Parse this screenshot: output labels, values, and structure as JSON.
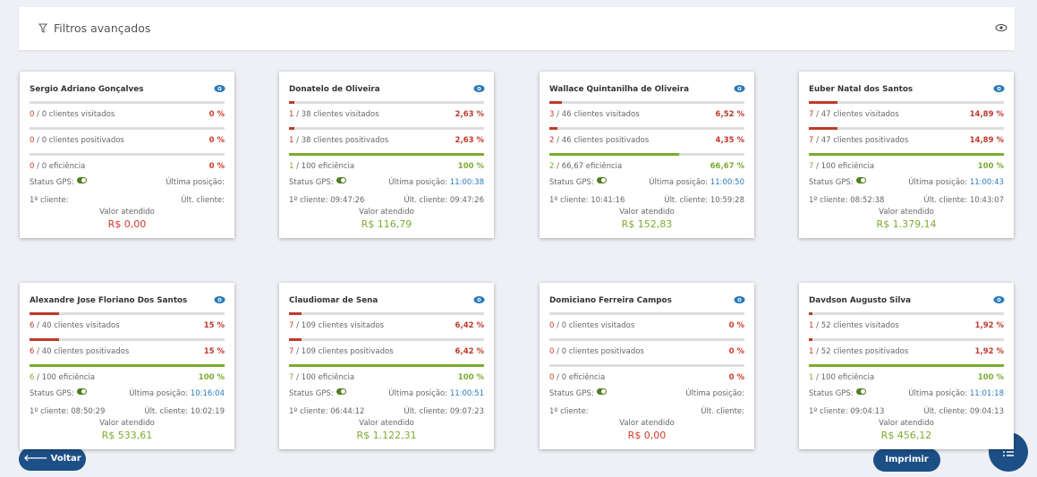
{
  "header": {
    "title": "Filtros avançados"
  },
  "labels": {
    "gps": "Status GPS:",
    "last_position": "Última posição:",
    "first_client": "1º cliente:",
    "last_client": "Últ. cliente:",
    "value": "Valor atendido"
  },
  "cards": [
    {
      "name": "Sergio Adriano Gonçalves",
      "metrics": [
        {
          "count": "0",
          "label": "/ 0 clientes visitados",
          "percent": "0 %",
          "color": "#d23a2a"
        },
        {
          "count": "0",
          "label": "/ 0 clientes positivados",
          "percent": "0 %",
          "color": "#d23a2a"
        },
        {
          "count": "0",
          "label": "/ 0 eficiência",
          "percent": "0 %",
          "color": "#d23a2a"
        }
      ],
      "value": "R$ 0,00",
      "value_color": "#d23a2a"
    },
    {
      "name": "Donatelo de Oliveira",
      "metrics": [
        {
          "count": "1",
          "label": "/ 38 clientes visitados",
          "percent": "2,63 %",
          "color": "#c0392b"
        },
        {
          "count": "1",
          "label": "/ 38 clientes positivados",
          "percent": "2,63 %",
          "color": "#c0392b"
        },
        {
          "count": "1",
          "label": "/ 100 eficiência",
          "percent": "100 %",
          "color": "#7cab2f"
        }
      ],
      "last_position": "11:00:38",
      "first_client": "09:47:26",
      "last_client": "09:47:26",
      "value": "R$ 116,79",
      "value_color": "#7cab2f"
    },
    {
      "name": "Wallace Quintanilha de Oliveira",
      "metrics": [
        {
          "count": "3",
          "label": "/ 46 clientes visitados",
          "percent": "6,52 %",
          "color": "#c0392b"
        },
        {
          "count": "2",
          "label": "/ 46 clientes positivados",
          "percent": "4,35 %",
          "color": "#c0392b"
        },
        {
          "count": "2",
          "label": "/ 66,67 eficiência",
          "percent": "66,67 %",
          "color": "#7cab2f"
        }
      ],
      "last_position": "11:00:50",
      "first_client": "10:41:16",
      "last_client": "10:59:28",
      "value": "R$ 152,83",
      "value_color": "#7cab2f"
    },
    {
      "name": "Euber Natal dos Santos",
      "metrics": [
        {
          "count": "7",
          "label": "/ 47 clientes visitados",
          "percent": "14,89 %",
          "color": "#c0392b"
        },
        {
          "count": "7",
          "label": "/ 47 clientes positivados",
          "percent": "14,89 %",
          "color": "#c0392b"
        },
        {
          "count": "7",
          "label": "/ 100 eficiência",
          "percent": "100 %",
          "color": "#7cab2f"
        }
      ],
      "last_position": "11:00:43",
      "first_client": "08:52:38",
      "last_client": "10:43:07",
      "value": "R$ 1.379,14",
      "value_color": "#7cab2f"
    },
    {
      "name": "Alexandre Jose Floriano Dos Santos",
      "metrics": [
        {
          "count": "6",
          "label": "/ 40 clientes visitados",
          "percent": "15 %",
          "color": "#c0392b"
        },
        {
          "count": "6",
          "label": "/ 40 clientes positivados",
          "percent": "15 %",
          "color": "#c0392b"
        },
        {
          "count": "6",
          "label": "/ 100 eficiência",
          "percent": "100 %",
          "color": "#7cab2f"
        }
      ],
      "last_position": "10:16:04",
      "first_client": "08:50:29",
      "last_client": "10:02:19",
      "value": "R$ 533,61",
      "value_color": "#7cab2f"
    },
    {
      "name": "Claudiomar de Sena",
      "metrics": [
        {
          "count": "7",
          "label": "/ 109 clientes visitados",
          "percent": "6,42 %",
          "color": "#c0392b"
        },
        {
          "count": "7",
          "label": "/ 109 clientes positivados",
          "percent": "6,42 %",
          "color": "#c0392b"
        },
        {
          "count": "7",
          "label": "/ 100 eficiência",
          "percent": "100 %",
          "color": "#7cab2f"
        }
      ],
      "last_position": "11:00:51",
      "first_client": "06:44:12",
      "last_client": "09:07:23",
      "value": "R$ 1.122,31",
      "value_color": "#7cab2f"
    },
    {
      "name": "Domiciano Ferreira Campos",
      "metrics": [
        {
          "count": "0",
          "label": "/ 0 clientes visitados",
          "percent": "0 %",
          "color": "#d23a2a"
        },
        {
          "count": "0",
          "label": "/ 0 clientes positivados",
          "percent": "0 %",
          "color": "#d23a2a"
        },
        {
          "count": "0",
          "label": "/ 0 eficiência",
          "percent": "0 %",
          "color": "#d23a2a"
        }
      ],
      "value": "R$ 0,00",
      "value_color": "#d23a2a"
    },
    {
      "name": "Davdson Augusto Silva",
      "metrics": [
        {
          "count": "1",
          "label": "/ 52 clientes visitados",
          "percent": "1,92 %",
          "color": "#c0392b"
        },
        {
          "count": "1",
          "label": "/ 52 clientes positivados",
          "percent": "1,92 %",
          "color": "#c0392b"
        },
        {
          "count": "1",
          "label": "/ 100 eficiência",
          "percent": "100 %",
          "color": "#7cab2f"
        }
      ],
      "last_position": "11:01:18",
      "first_client": "09:04:13",
      "last_client": "09:04:13",
      "value": "R$ 456,12",
      "value_color": "#7cab2f"
    }
  ],
  "buttons": {
    "back": "Voltar",
    "print": "Imprimir"
  }
}
